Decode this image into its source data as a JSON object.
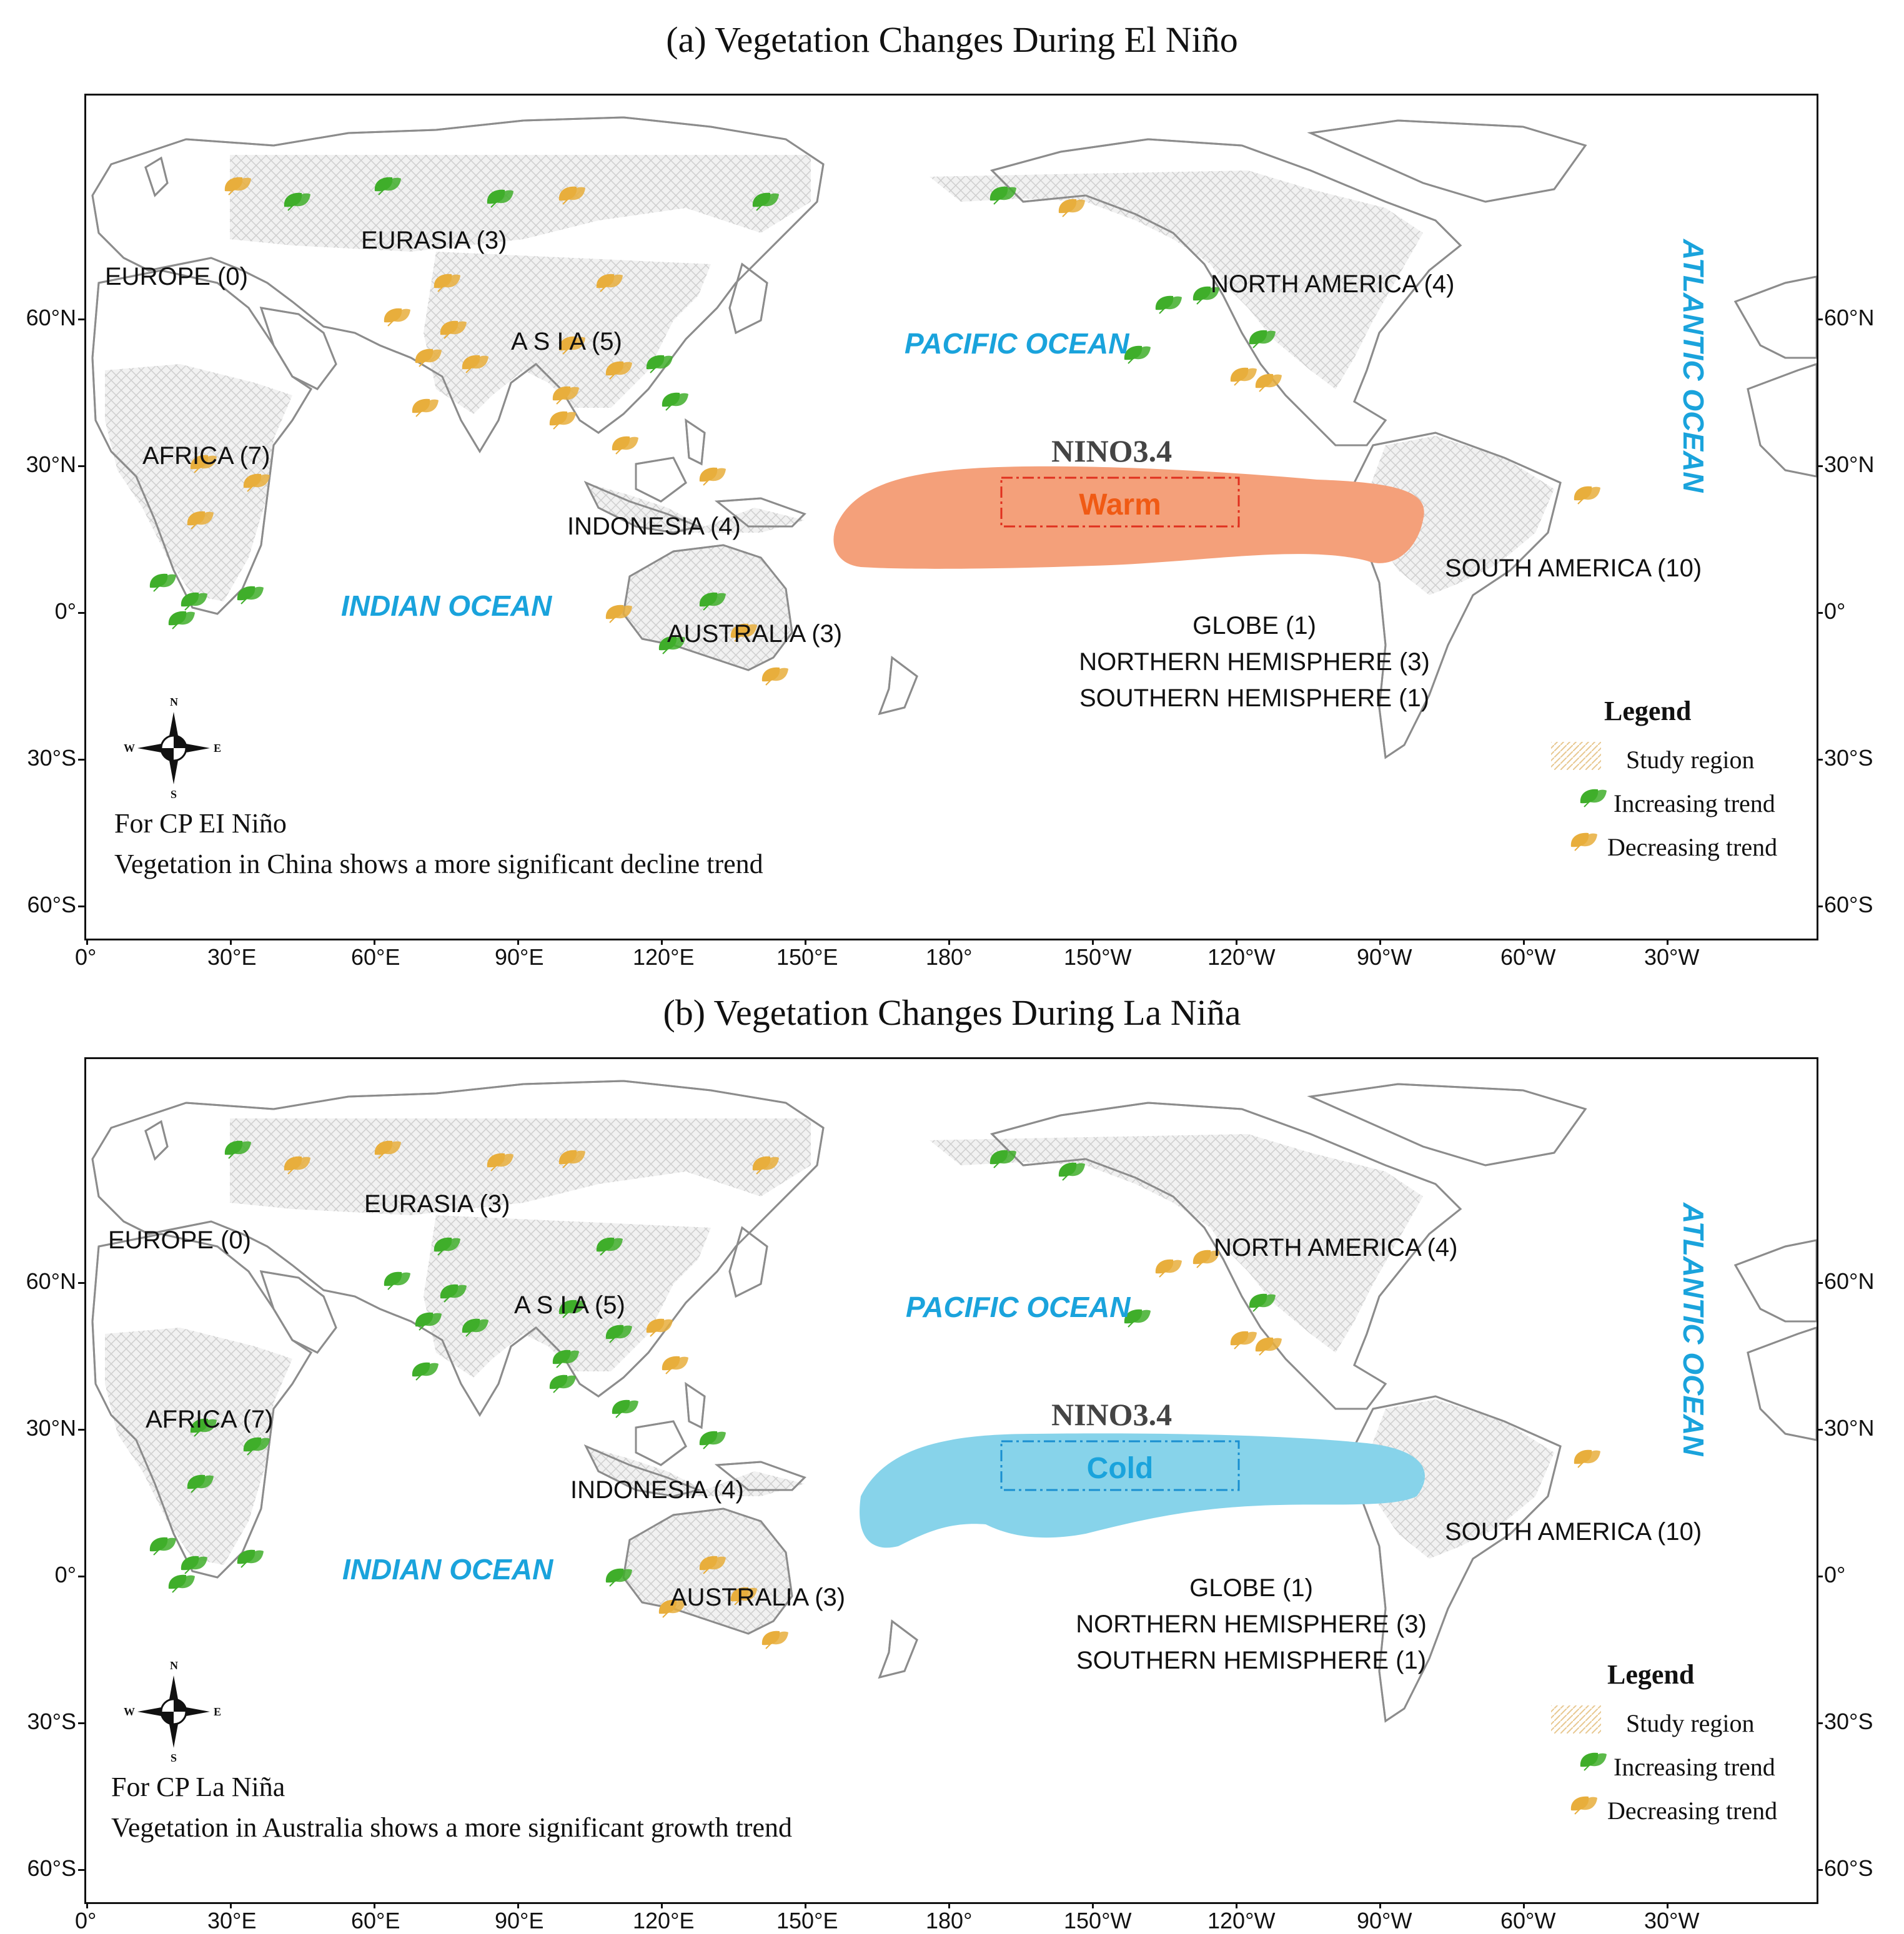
{
  "panels": [
    {
      "title": "(a) Vegetation Changes During El Niño",
      "nino_title": "NINO3.4",
      "nino_state": "Warm",
      "nino_color": "#f4a07a",
      "nino_text_color": "#f05a14",
      "nino_box_color": "#e0301e",
      "note_line1": "For CP EI Niño",
      "note_line2": "Vegetation in China shows a more significant decline trend",
      "icons": [
        "dec",
        "inc",
        "inc",
        "inc",
        "dec",
        "inc",
        "inc",
        "dec",
        "dec",
        "dec",
        "dec",
        "dec",
        "dec",
        "dec",
        "dec",
        "dec",
        "dec",
        "inc",
        "inc",
        "dec",
        "dec",
        "dec",
        "dec",
        "dec",
        "dec",
        "dec",
        "inc",
        "inc",
        "inc",
        "inc",
        "dec",
        "inc",
        "inc",
        "dec",
        "dec",
        "inc",
        "inc",
        "inc",
        "inc",
        "dec",
        "dec",
        "dec"
      ]
    },
    {
      "title": "(b) Vegetation Changes During La Niña",
      "nino_title": "NINO3.4",
      "nino_state": "Cold",
      "nino_color": "#87d3ea",
      "nino_text_color": "#1aa3dc",
      "nino_box_color": "#1a8fd0",
      "note_line1": "For CP La Niña",
      "note_line2": "Vegetation in Australia shows a more significant growth trend",
      "icons": [
        "inc",
        "dec",
        "dec",
        "dec",
        "dec",
        "dec",
        "inc",
        "inc",
        "inc",
        "inc",
        "inc",
        "inc",
        "inc",
        "inc",
        "inc",
        "inc",
        "inc",
        "dec",
        "dec",
        "inc",
        "inc",
        "inc",
        "inc",
        "inc",
        "inc",
        "inc",
        "inc",
        "inc",
        "inc",
        "inc",
        "inc",
        "dec",
        "dec",
        "dec",
        "dec",
        "dec",
        "dec",
        "inc",
        "inc",
        "dec",
        "dec",
        "dec"
      ]
    }
  ],
  "regions": {
    "europe": "EUROPE (0)",
    "eurasia": "EURASIA (3)",
    "asia": "A S I A (5)",
    "africa": "AFRICA (7)",
    "indonesia": "INDONESIA (4)",
    "australia": "AUSTRALIA (3)",
    "north_america": "NORTH AMERICA (4)",
    "south_america": "SOUTH AMERICA (10)",
    "globe": "GLOBE (1)",
    "northern_hemisphere": "NORTHERN HEMISPHERE (3)",
    "southern_hemisphere": "SOUTHERN HEMISPHERE (1)"
  },
  "oceans": {
    "pacific": "PACIFIC OCEAN",
    "indian": "INDIAN OCEAN",
    "atlantic": "ATLANTIC OCEAN"
  },
  "legend": {
    "title": "Legend",
    "study_region": "Study region",
    "increasing": "Increasing trend",
    "decreasing": "Decreasing trend"
  },
  "compass": {
    "n": "N",
    "s": "S",
    "e": "E",
    "w": "W"
  },
  "axes": {
    "lat_labels": [
      "60°N",
      "30°N",
      "0°",
      "30°S",
      "60°S"
    ],
    "lon_labels": [
      "0°",
      "30°E",
      "60°E",
      "90°E",
      "120°E",
      "150°E",
      "180°",
      "150°W",
      "120°W",
      "90°W",
      "60°W",
      "30°W"
    ]
  },
  "colors": {
    "increasing": "#3fae2a",
    "decreasing": "#e8ae3c",
    "ocean_label": "#1aa3dc",
    "land_outline": "#8c8c8c"
  },
  "icon_names": {
    "compass": "compass-icon",
    "leaf_inc": "green-leaf-icon",
    "leaf_dec": "orange-leaf-icon"
  }
}
